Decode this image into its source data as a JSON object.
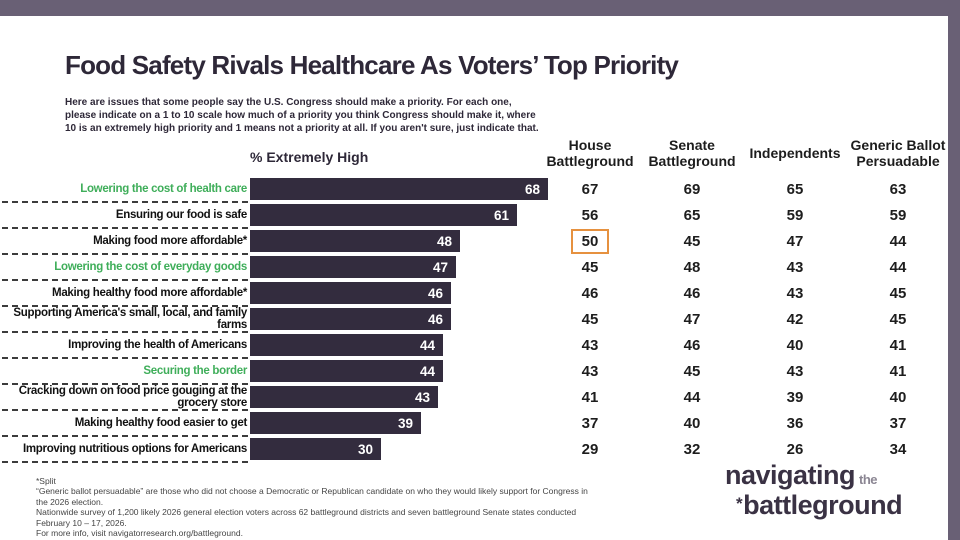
{
  "page": {
    "title": "Food Safety Rivals Healthcare As Voters’ Top Priority",
    "subtitle": "Here are issues that some people say the U.S. Congress should make a priority. For each one, please indicate on a 1 to 10 scale how much of a priority you think Congress should make it, where 10 is an extremely high priority and 1 means not a priority at all. If you aren't sure, just indicate that."
  },
  "chart_data": {
    "type": "bar",
    "orientation": "horizontal",
    "bar_axis_label": "% Extremely High",
    "value_unit": "% extremely high priority",
    "xlim": [
      0,
      70
    ],
    "grid": false,
    "columns": [
      "House Battleground",
      "Senate Battleground",
      "Independents",
      "Generic Ballot Persuadable"
    ],
    "rows": [
      {
        "label": "Lowering the cost of health care",
        "highlight": "green",
        "bar": 68,
        "values": [
          67,
          69,
          65,
          63
        ]
      },
      {
        "label": "Ensuring our food is safe",
        "highlight": "none",
        "bar": 61,
        "values": [
          56,
          65,
          59,
          59
        ]
      },
      {
        "label": "Making food more affordable*",
        "highlight": "none",
        "bar": 48,
        "values": [
          50,
          45,
          47,
          44
        ],
        "boxed_value_index": 0
      },
      {
        "label": "Lowering the cost of everyday goods",
        "highlight": "green",
        "bar": 47,
        "values": [
          45,
          48,
          43,
          44
        ]
      },
      {
        "label": "Making healthy food more affordable*",
        "highlight": "none",
        "bar": 46,
        "values": [
          46,
          46,
          43,
          45
        ]
      },
      {
        "label": "Supporting America's small, local, and family farms",
        "highlight": "none",
        "bar": 46,
        "values": [
          45,
          47,
          42,
          45
        ]
      },
      {
        "label": "Improving the health of Americans",
        "highlight": "none",
        "bar": 44,
        "values": [
          43,
          46,
          40,
          41
        ]
      },
      {
        "label": "Securing the border",
        "highlight": "green",
        "bar": 44,
        "values": [
          43,
          45,
          43,
          41
        ]
      },
      {
        "label": "Cracking down on food price gouging at the grocery store",
        "highlight": "none",
        "bar": 43,
        "values": [
          41,
          44,
          39,
          40
        ]
      },
      {
        "label": "Making healthy food easier to get",
        "highlight": "none",
        "bar": 39,
        "values": [
          37,
          40,
          36,
          37
        ]
      },
      {
        "label": "Improving nutritious options for Americans",
        "highlight": "none",
        "bar": 30,
        "values": [
          29,
          32,
          26,
          34
        ]
      }
    ]
  },
  "footer": {
    "notes": [
      "*Split",
      "“Generic ballot persuadable” are those who did not choose a Democratic or Republican candidate on who they would likely support for Congress in the 2026 election.",
      "Nationwide survey of 1,200 likely 2026 general election voters across 62 battleground districts and seven battleground Senate states conducted February 10 – 17, 2026.",
      "For more info, visit navigatorresearch.org/battleground."
    ]
  },
  "logo": {
    "line1_main": "navigating",
    "line1_small": "the",
    "line2_mark": "*",
    "line2_main": "battleground"
  },
  "colors": {
    "accent_green": "#3fae5a",
    "bar_fill": "#332c3e",
    "band_purple": "#696075",
    "highlight_box_orange": "#e6913f",
    "ink": "#2e2838"
  }
}
